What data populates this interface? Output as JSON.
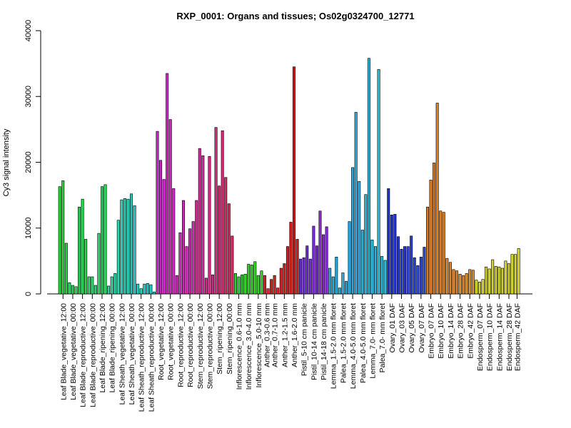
{
  "chart_data": {
    "type": "bar",
    "title": "RXP_0001: Organs and tissues; Os02g0324700_12771",
    "ylabel": "Cy3 signal intensity",
    "xlabel": "",
    "ylim": [
      0,
      40000
    ],
    "yticks": [
      0,
      10000,
      20000,
      30000,
      40000
    ],
    "grid": false,
    "legend": "none",
    "values": [
      16300,
      17200,
      7700,
      1700,
      1300,
      1100,
      13200,
      14400,
      8300,
      2600,
      2600,
      1300,
      9200,
      16300,
      16600,
      1200,
      2600,
      3100,
      11200,
      14300,
      14500,
      14400,
      15200,
      13400,
      1500,
      800,
      1500,
      1600,
      1400,
      300,
      24700,
      20300,
      17400,
      33500,
      26500,
      16000,
      2800,
      9300,
      14200,
      7200,
      9900,
      11000,
      14200,
      22100,
      21000,
      2400,
      20900,
      2900,
      25300,
      16400,
      24800,
      17700,
      13700,
      8800,
      3100,
      2600,
      2900,
      3000,
      4500,
      4400,
      4900,
      2800,
      3500,
      2800,
      800,
      2200,
      2800,
      900,
      3900,
      4600,
      7200,
      10900,
      34500,
      8300,
      5300,
      5500,
      7300,
      5300,
      10300,
      7300,
      12600,
      9000,
      10200,
      3900,
      2600,
      5600,
      900,
      3200,
      1900,
      11000,
      19200,
      27600,
      17100,
      9700,
      15100,
      35800,
      8200,
      7200,
      34100,
      5700,
      5100,
      16000,
      12000,
      12100,
      8700,
      6800,
      7200,
      7200,
      8800,
      5500,
      4300,
      5600,
      7100,
      13200,
      17300,
      19900,
      29000,
      12600,
      12400,
      5400,
      4800,
      3700,
      3500,
      3000,
      2800,
      3100,
      3700,
      3600,
      2100,
      1800,
      2200,
      4100,
      3800,
      5200,
      4200,
      4100,
      3900,
      5000,
      4600,
      6000,
      6000,
      6900
    ],
    "colors": [
      "#22d63a",
      "#22d63a",
      "#22d63a",
      "#2ad65a",
      "#2ad65a",
      "#2ad65a",
      "#2ad650",
      "#2ad650",
      "#2ad650",
      "#30d670",
      "#30d670",
      "#30d670",
      "#2ed65a",
      "#2ed65a",
      "#2ed65a",
      "#28d6a0",
      "#28d6a0",
      "#28d6a0",
      "#26d6b4",
      "#26d6b4",
      "#26d6b4",
      "#22ccbc",
      "#22ccbc",
      "#22ccbc",
      "#24d4c4",
      "#24d4c4",
      "#24d4c4",
      "#20c8c8",
      "#20c8c8",
      "#20c8c8",
      "#d020d0",
      "#d020d0",
      "#d020d0",
      "#d624c8",
      "#d624c8",
      "#d624c8",
      "#d626bc",
      "#d626bc",
      "#d626bc",
      "#d628b0",
      "#d628b0",
      "#d628b0",
      "#d62896",
      "#d62896",
      "#d62896",
      "#d62a8a",
      "#d62a8a",
      "#d62a8a",
      "#d62a78",
      "#d62a78",
      "#d62a78",
      "#d62a60",
      "#d62a60",
      "#d62a60",
      "#26d42c",
      "#26d42c",
      "#26d42c",
      "#2ed626",
      "#2ed626",
      "#2ed626",
      "#30d622",
      "#30d622",
      "#30d622",
      "#d62828",
      "#d62828",
      "#d62424",
      "#d62424",
      "#d62424",
      "#d61e1e",
      "#d61e1e",
      "#d61e1e",
      "#d61818",
      "#d61818",
      "#d61818",
      "#6a28d6",
      "#6a28d6",
      "#6a28d6",
      "#7a2ad6",
      "#7a2ad6",
      "#7a2ad6",
      "#8a2ad6",
      "#8a2ad6",
      "#8a2ad6",
      "#28a8d6",
      "#28a8d6",
      "#28a8d6",
      "#2aaed6",
      "#2aaed6",
      "#2aaed6",
      "#2aa8e0",
      "#2aa8e0",
      "#2aa8e0",
      "#2ab0e0",
      "#2ab0e0",
      "#2ab0e0",
      "#26b4e0",
      "#26b4e0",
      "#26b4e0",
      "#26bce0",
      "#26bce0",
      "#26bce0",
      "#2030d6",
      "#2030d6",
      "#2030d6",
      "#2438d6",
      "#2438d6",
      "#2438d6",
      "#2840d6",
      "#2840d6",
      "#2840d6",
      "#2c48d6",
      "#2c48d6",
      "#2c48d6",
      "#e07a20",
      "#e07a20",
      "#e07a20",
      "#e08020",
      "#e08020",
      "#e08020",
      "#e08626",
      "#e08626",
      "#e08626",
      "#e08c2a",
      "#e08c2a",
      "#e08c2a",
      "#e0922e",
      "#e0922e",
      "#e0922e",
      "#d6d62a",
      "#d6d62a",
      "#d6d62a",
      "#d4d42a",
      "#d4d42a",
      "#d4d42a",
      "#d0d02a",
      "#d0d02a",
      "#d0d02a",
      "#d6d82a",
      "#d6d82a",
      "#d6d82a",
      "#dcdc2c",
      "#dcdc2c"
    ],
    "tick_labels": [
      {
        "label": "Leaf Blade_vegetative_12:00",
        "at": 1
      },
      {
        "label": "Leaf Blade_vegetative_00:00",
        "at": 4
      },
      {
        "label": "Leaf Blade_reproductive_12:00",
        "at": 7
      },
      {
        "label": "Leaf Blade_reproductive_00:00",
        "at": 10
      },
      {
        "label": "Leaf Blade_ripening_12:00",
        "at": 13
      },
      {
        "label": "Leaf Blade_ripening_00:00",
        "at": 16
      },
      {
        "label": "Leaf Sheath_vegetative_12:00",
        "at": 19
      },
      {
        "label": "Leaf Sheath_vegetative_00:00",
        "at": 22
      },
      {
        "label": "Leaf Sheath_reproductive_12:00",
        "at": 25
      },
      {
        "label": "Leaf Sheath_reproductive_00:00",
        "at": 28
      },
      {
        "label": "Root_vegetative_12:00",
        "at": 31
      },
      {
        "label": "Root_vegetative_00:00",
        "at": 34
      },
      {
        "label": "Root_reproductive_12:00",
        "at": 37
      },
      {
        "label": "Root_reproductive_00:00",
        "at": 40
      },
      {
        "label": "Stem_reproductive_12:00",
        "at": 43
      },
      {
        "label": "Stem_reproductive_00:00",
        "at": 46
      },
      {
        "label": "Stem_ripening_12:00",
        "at": 49
      },
      {
        "label": "Stem_ripening_00:00",
        "at": 52
      },
      {
        "label": "Inflorescence_0.6-1.0 mm",
        "at": 55
      },
      {
        "label": "Inflorescence_3.0-4.0 mm",
        "at": 58
      },
      {
        "label": "Inflorescence_5.0-10 mm",
        "at": 61
      },
      {
        "label": "Anther_0.3-0.6 mm",
        "at": 63.5
      },
      {
        "label": "Anther_0.7-1.0 mm",
        "at": 66
      },
      {
        "label": "Anther_1.2-1.5 mm",
        "at": 69
      },
      {
        "label": "Anther_1.6-2.0 mm",
        "at": 72
      },
      {
        "label": "Pistil_5-10 cm panicle",
        "at": 75
      },
      {
        "label": "Pistil_10-14 cm panicle",
        "at": 78
      },
      {
        "label": "Pistil_14-18 cm panicle",
        "at": 81
      },
      {
        "label": "Lemma_1.5-2.0 mm floret",
        "at": 84
      },
      {
        "label": "Palea_1.5-2.0 mm floret",
        "at": 87
      },
      {
        "label": "Lemma_4.0-5.0 mm floret",
        "at": 90
      },
      {
        "label": "Palea_4.0-5.0 mm floret",
        "at": 93
      },
      {
        "label": "Lemma_7.0- mm floret",
        "at": 96
      },
      {
        "label": "Palea_7.0- mm floret",
        "at": 99
      },
      {
        "label": "Ovary_01 DAF",
        "at": 102
      },
      {
        "label": "Ovary_03 DAF",
        "at": 105
      },
      {
        "label": "Ovary_05 DAF",
        "at": 108
      },
      {
        "label": "Ovary_07 DAF",
        "at": 111
      },
      {
        "label": "Embryo_07 DAF",
        "at": 114
      },
      {
        "label": "Embryo_10 DAF",
        "at": 117
      },
      {
        "label": "Embryo_14 DAF",
        "at": 120
      },
      {
        "label": "Embryo_28 DAF",
        "at": 123
      },
      {
        "label": "Embryo_42 DAF",
        "at": 126
      },
      {
        "label": "Endosperm_07 DAF",
        "at": 129
      },
      {
        "label": "Endosperm_10 DAF",
        "at": 132
      },
      {
        "label": "Endosperm_14 DAF",
        "at": 135
      },
      {
        "label": "Endosperm_28 DAF",
        "at": 138
      },
      {
        "label": "Endosperm_42 DAF",
        "at": 140.5
      }
    ]
  }
}
